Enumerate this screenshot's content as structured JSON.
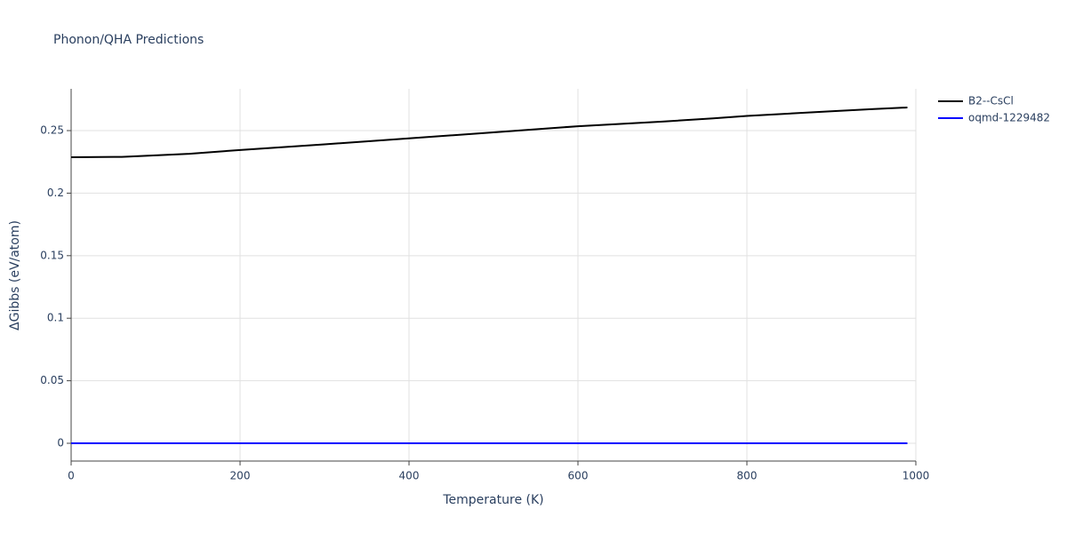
{
  "chart_data": {
    "type": "line",
    "title": "Phonon/QHA Predictions",
    "x_label": "Temperature (K)",
    "y_label": "ΔGibbs (eV/atom)",
    "x": [
      0,
      60,
      140,
      200,
      300,
      400,
      500,
      600,
      700,
      760,
      800,
      900,
      950,
      990
    ],
    "series": [
      {
        "name": "B2--CsCl",
        "color": "#000000",
        "values": [
          0.2287,
          0.229,
          0.2315,
          0.2345,
          0.239,
          0.2438,
          0.2486,
          0.2535,
          0.2572,
          0.2598,
          0.2617,
          0.2655,
          0.2672,
          0.2685
        ]
      },
      {
        "name": "oqmd-1229482",
        "color": "#0000ff",
        "values": [
          0,
          0,
          0,
          0,
          0,
          0,
          0,
          0,
          0,
          0,
          0,
          0,
          0,
          0
        ]
      }
    ],
    "xlim": [
      0,
      1000
    ],
    "xticks": [
      0,
      200,
      400,
      600,
      800,
      1000
    ],
    "ylim": [
      -0.0142,
      0.2834
    ],
    "yticks": [
      0,
      0.05,
      0.1,
      0.15,
      0.2,
      0.25
    ],
    "grid": true,
    "legend": "outside-right"
  }
}
